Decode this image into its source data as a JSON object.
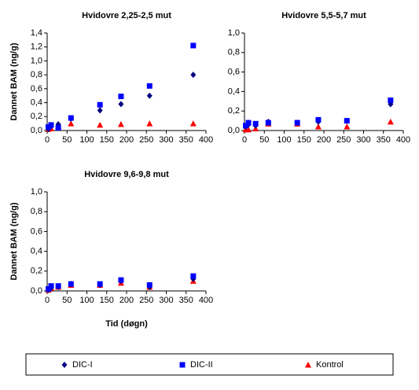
{
  "chart_data": [
    {
      "type": "scatter",
      "title": "Hvidovre 2,25-2,5 mut",
      "y_label": "Dannet BAM (ng/g)",
      "x": [
        3,
        10,
        28,
        60,
        133,
        186,
        258,
        368
      ],
      "series": [
        {
          "values": [
            0.02,
            0.06,
            0.09,
            0.17,
            0.29,
            0.38,
            0.5,
            0.8
          ]
        },
        {
          "values": [
            0.05,
            0.08,
            0.04,
            0.18,
            0.37,
            0.49,
            0.64,
            1.22
          ]
        },
        {
          "values": [
            0.02,
            0.03,
            0.06,
            0.1,
            0.08,
            0.09,
            0.1,
            0.1
          ]
        }
      ],
      "xlim": [
        0,
        400
      ],
      "xticks": [
        0,
        50,
        100,
        150,
        200,
        250,
        300,
        350,
        400
      ],
      "ylim": [
        0,
        1.4
      ],
      "yticks": [
        {
          "value": 0,
          "label": "0,0"
        },
        {
          "value": 0.2,
          "label": "0,2"
        },
        {
          "value": 0.4,
          "label": "0,4"
        },
        {
          "value": 0.6,
          "label": "0,6"
        },
        {
          "value": 0.8,
          "label": "0,8"
        },
        {
          "value": 1,
          "label": "1,0"
        },
        {
          "value": 1.2,
          "label": "1,2"
        },
        {
          "value": 1.4,
          "label": "1,4"
        }
      ]
    },
    {
      "type": "scatter",
      "title": "Hvidovre 5,5-5,7 mut",
      "x": [
        3,
        10,
        28,
        60,
        133,
        186,
        258,
        368
      ],
      "series": [
        {
          "values": [
            0.04,
            0.06,
            0.05,
            0.09,
            0.08,
            0.09,
            0.1,
            0.27
          ]
        },
        {
          "values": [
            0.05,
            0.08,
            0.07,
            0.08,
            0.08,
            0.11,
            0.1,
            0.31
          ]
        },
        {
          "values": [
            0.01,
            0.01,
            0.02,
            0.07,
            0.07,
            0.04,
            0.04,
            0.09
          ]
        }
      ],
      "xlim": [
        0,
        400
      ],
      "xticks": [
        0,
        50,
        100,
        150,
        200,
        250,
        300,
        350,
        400
      ],
      "ylim": [
        0,
        1
      ],
      "yticks": [
        {
          "value": 0,
          "label": "0,0"
        },
        {
          "value": 0.2,
          "label": "0,2"
        },
        {
          "value": 0.4,
          "label": "0,4"
        },
        {
          "value": 0.6,
          "label": "0,6"
        },
        {
          "value": 0.8,
          "label": "0,8"
        },
        {
          "value": 1,
          "label": "1,0"
        }
      ]
    },
    {
      "type": "scatter",
      "title": "Hvidovre 9,6-9,8 mut",
      "y_label": "Dannet BAM (ng/g)",
      "x_label": "Tid (døgn)",
      "x": [
        3,
        10,
        28,
        60,
        133,
        186,
        258,
        368
      ],
      "series": [
        {
          "values": [
            0.01,
            0.03,
            0.04,
            0.07,
            0.06,
            0.1,
            0.04,
            0.12
          ]
        },
        {
          "values": [
            0.02,
            0.05,
            0.05,
            0.07,
            0.07,
            0.11,
            0.06,
            0.15
          ]
        },
        {
          "values": [
            0.01,
            0.03,
            0.04,
            0.06,
            0.06,
            0.08,
            0.04,
            0.1
          ]
        }
      ],
      "xlim": [
        0,
        400
      ],
      "xticks": [
        0,
        50,
        100,
        150,
        200,
        250,
        300,
        350,
        400
      ],
      "ylim": [
        0,
        1
      ],
      "yticks": [
        {
          "value": 0,
          "label": "0,0"
        },
        {
          "value": 0.2,
          "label": "0,2"
        },
        {
          "value": 0.4,
          "label": "0,4"
        },
        {
          "value": 0.6,
          "label": "0,6"
        },
        {
          "value": 0.8,
          "label": "0,8"
        },
        {
          "value": 1,
          "label": "1,0"
        }
      ]
    }
  ],
  "legend": [
    {
      "name": "DIC-I",
      "color": "#000080",
      "marker": "diamond"
    },
    {
      "name": "DIC-II",
      "color": "#0000ff",
      "marker": "square"
    },
    {
      "name": "Kontrol",
      "color": "#ff0000",
      "marker": "triangle"
    }
  ]
}
